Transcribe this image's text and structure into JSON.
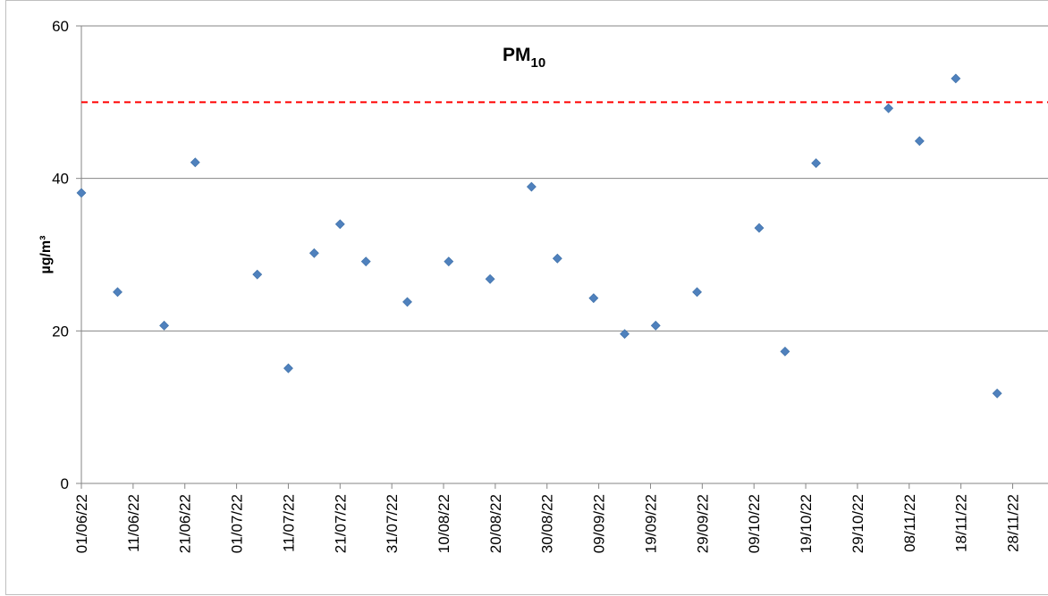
{
  "chart_data": {
    "type": "scatter",
    "title": "PM",
    "title_subscript": "10",
    "xlabel": "",
    "ylabel": "µg/m³",
    "ylim": [
      0,
      60
    ],
    "yticks": [
      "0",
      "20",
      "40",
      "60"
    ],
    "xlim": [
      "2022-06-01",
      "2022-12-05"
    ],
    "xticks": [
      "01/06/22",
      "11/06/22",
      "21/06/22",
      "01/07/22",
      "11/07/22",
      "21/07/22",
      "31/07/22",
      "10/08/22",
      "20/08/22",
      "30/08/22",
      "09/09/22",
      "19/09/22",
      "29/09/22",
      "09/10/22",
      "19/10/22",
      "29/10/22",
      "08/11/22",
      "18/11/22",
      "28/11/22"
    ],
    "grid": "horizontal",
    "limit_line": {
      "y": 50,
      "color": "#ff0000",
      "style": "dashed"
    },
    "marker_color": "#4f81bd",
    "points": [
      {
        "x": "2022-06-01",
        "y": 38.1
      },
      {
        "x": "2022-06-08",
        "y": 25.1
      },
      {
        "x": "2022-06-17",
        "y": 20.7
      },
      {
        "x": "2022-06-23",
        "y": 42.1
      },
      {
        "x": "2022-07-05",
        "y": 27.4
      },
      {
        "x": "2022-07-11",
        "y": 15.1
      },
      {
        "x": "2022-07-16",
        "y": 30.2
      },
      {
        "x": "2022-07-21",
        "y": 34.0
      },
      {
        "x": "2022-07-26",
        "y": 29.1
      },
      {
        "x": "2022-08-03",
        "y": 23.8
      },
      {
        "x": "2022-08-11",
        "y": 29.1
      },
      {
        "x": "2022-08-19",
        "y": 26.8
      },
      {
        "x": "2022-08-27",
        "y": 38.9
      },
      {
        "x": "2022-09-01",
        "y": 29.5
      },
      {
        "x": "2022-09-08",
        "y": 24.3
      },
      {
        "x": "2022-09-14",
        "y": 19.6
      },
      {
        "x": "2022-09-20",
        "y": 20.7
      },
      {
        "x": "2022-09-28",
        "y": 25.1
      },
      {
        "x": "2022-10-10",
        "y": 33.5
      },
      {
        "x": "2022-10-15",
        "y": 17.3
      },
      {
        "x": "2022-10-21",
        "y": 42.0
      },
      {
        "x": "2022-11-04",
        "y": 49.2
      },
      {
        "x": "2022-11-10",
        "y": 44.9
      },
      {
        "x": "2022-11-17",
        "y": 53.1
      },
      {
        "x": "2022-11-25",
        "y": 11.8
      }
    ]
  }
}
